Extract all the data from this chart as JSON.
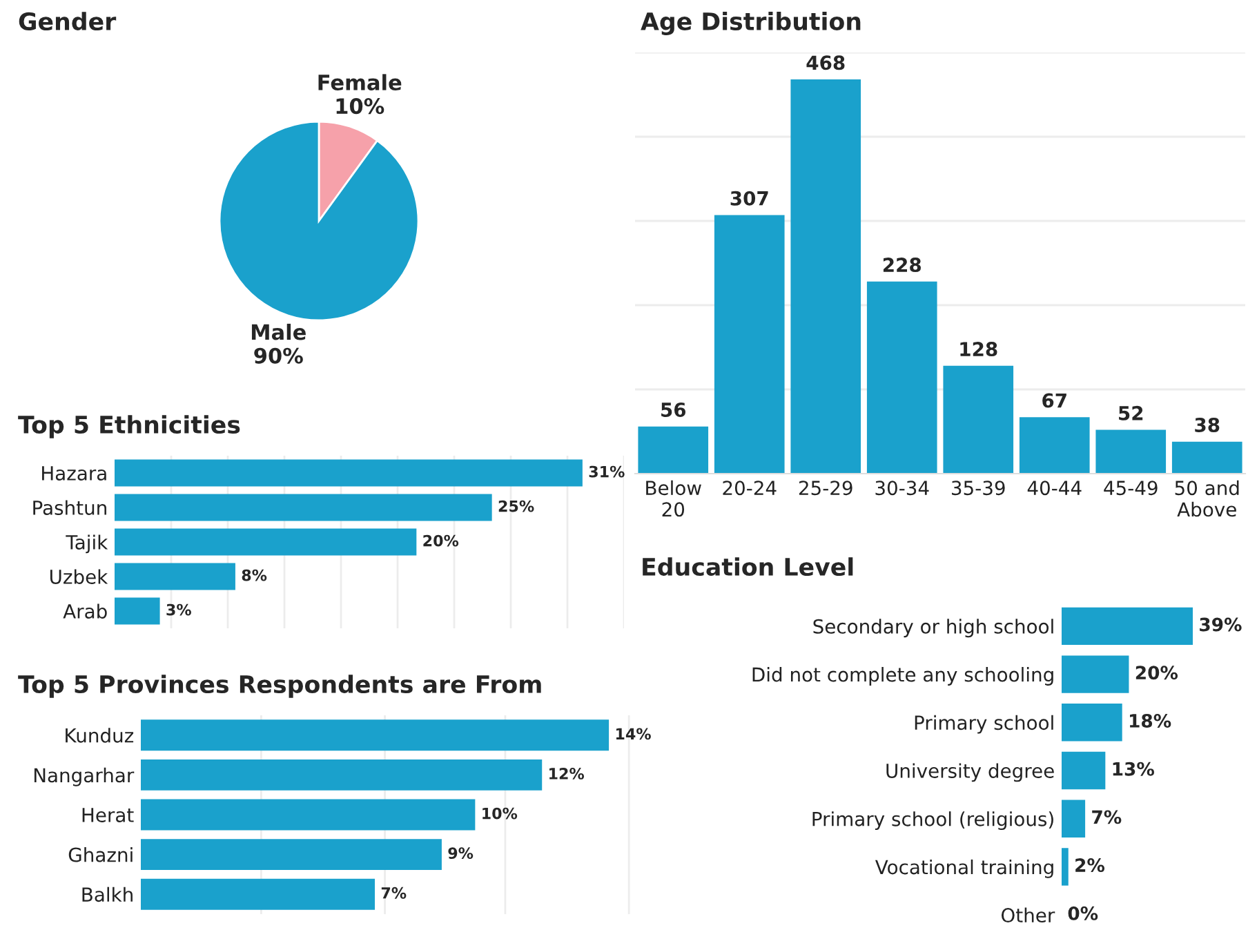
{
  "chart_data": [
    {
      "type": "pie",
      "title": "Gender",
      "categories": [
        "Female",
        "Male"
      ],
      "values": [
        10,
        90
      ],
      "value_labels": [
        "10%",
        "90%"
      ],
      "colors": [
        "#f6a1aa",
        "#1aa1cc"
      ]
    },
    {
      "type": "bar",
      "title": "Age Distribution",
      "categories": [
        "Below\n20",
        "20-24",
        "25-29",
        "30-34",
        "35-39",
        "40-44",
        "45-49",
        "50 and\nAbove"
      ],
      "values": [
        56,
        307,
        468,
        228,
        128,
        67,
        52,
        38
      ],
      "color": "#1aa1cc",
      "data_labels": true,
      "yticks": [
        {
          "value": 100,
          "label": null
        },
        {
          "value": 200,
          "label": null
        },
        {
          "value": 300,
          "label": null
        },
        {
          "value": 400,
          "label": null
        },
        {
          "value": 500,
          "label": null
        }
      ],
      "grid": "y",
      "tick_labels": "x"
    },
    {
      "type": "bar",
      "orientation": "horizontal",
      "title": "Top 5 Ethnicities",
      "categories": [
        "Hazara",
        "Pashtun",
        "Tajik",
        "Uzbek",
        "Arab"
      ],
      "values": [
        31,
        25,
        20,
        8,
        3
      ],
      "value_labels": [
        "31%",
        "25%",
        "20%",
        "8%",
        "3%"
      ],
      "color": "#1aa1cc",
      "xticks": [
        {
          "value": 3.75,
          "label": null
        },
        {
          "value": 7.5,
          "label": null
        },
        {
          "value": 11.25,
          "label": null
        },
        {
          "value": 15,
          "label": null
        },
        {
          "value": 18.75,
          "label": null
        },
        {
          "value": 22.5,
          "label": null
        },
        {
          "value": 26.25,
          "label": null
        },
        {
          "value": 30,
          "label": null
        },
        {
          "value": 33.75,
          "label": null
        }
      ],
      "grid": "x",
      "tick_labels": "y"
    },
    {
      "type": "bar",
      "orientation": "horizontal",
      "title": "Top 5 Provinces Respondents are From",
      "categories": [
        "Kunduz",
        "Nangarhar",
        "Herat",
        "Ghazni",
        "Balkh"
      ],
      "values": [
        14,
        12,
        10,
        9,
        7
      ],
      "value_labels": [
        "14%",
        "12%",
        "10%",
        "9%",
        "7%"
      ],
      "color": "#1aa1cc",
      "xticks": [
        {
          "value": 3.6,
          "label": null
        },
        {
          "value": 7.3,
          "label": null
        },
        {
          "value": 10.9,
          "label": null
        },
        {
          "value": 14.6,
          "label": null
        }
      ],
      "grid": "x",
      "tick_labels": "y"
    },
    {
      "type": "bar",
      "orientation": "horizontal",
      "title": "Education Level",
      "categories": [
        "Secondary or high school",
        "Did not complete any schooling",
        "Primary school",
        "University degree",
        "Primary school (religious)",
        "Vocational training",
        "Other"
      ],
      "values": [
        39,
        20,
        18,
        13,
        7,
        2,
        0
      ],
      "value_labels": [
        "39%",
        "20%",
        "18%",
        "13%",
        "7%",
        "2%",
        "0%"
      ],
      "color": "#1aa1cc",
      "tick_labels": "y"
    }
  ]
}
